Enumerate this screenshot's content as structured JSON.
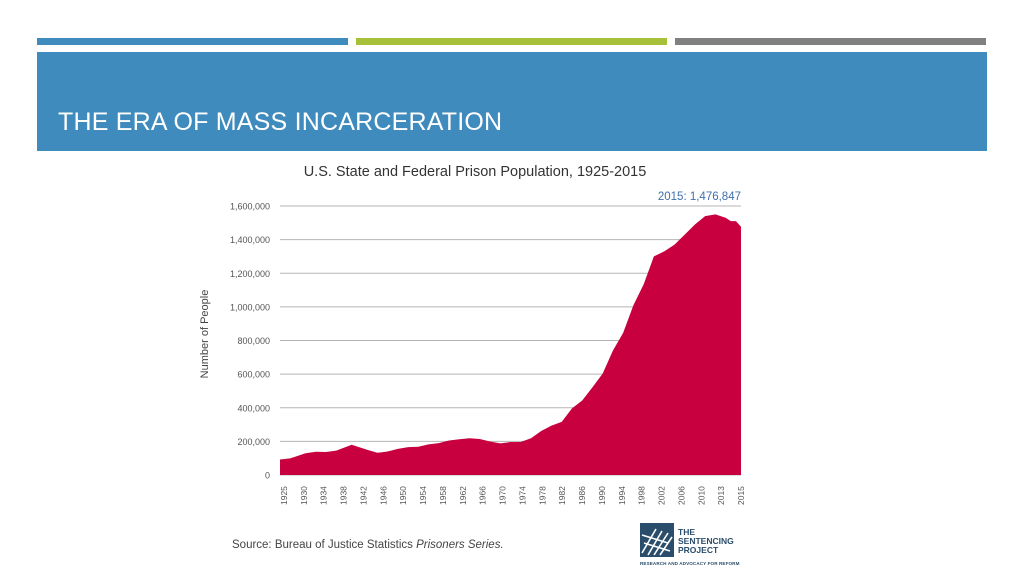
{
  "slide": {
    "title": "THE ERA OF MASS INCARCERATION",
    "accent_colors": [
      "#3f8bbd",
      "#a7c03a",
      "#808080"
    ],
    "source_prefix": "Source: Bureau of Justice Statistics ",
    "source_italic": "Prisoners Series."
  },
  "logo": {
    "line1": "THE",
    "line2": "SENTENCING",
    "line3": "PROJECT",
    "tagline": "RESEARCH AND ADVOCACY FOR REFORM",
    "icon": "sentencing-project-logo-icon"
  },
  "chart_data": {
    "type": "area",
    "title": "U.S. State and Federal Prison Population, 1925-2015",
    "xlabel": "",
    "ylabel": "Number of People",
    "ylim": [
      0,
      1600000
    ],
    "yticks": [
      0,
      200000,
      400000,
      600000,
      800000,
      1000000,
      1200000,
      1400000,
      1600000
    ],
    "ytick_labels": [
      "0",
      "200,000",
      "400,000",
      "600,000",
      "800,000",
      "1,000,000",
      "1,200,000",
      "1,400,000",
      "1,600,000"
    ],
    "xtick_labels": [
      "1925",
      "1930",
      "1934",
      "1938",
      "1942",
      "1946",
      "1950",
      "1954",
      "1958",
      "1962",
      "1966",
      "1970",
      "1974",
      "1978",
      "1982",
      "1986",
      "1990",
      "1994",
      "1998",
      "2002",
      "2006",
      "2010",
      "2013",
      "2015"
    ],
    "grid": true,
    "fill_color": "#c8003f",
    "annotation": "2015: 1,476,847",
    "series": [
      {
        "x": [
          1925,
          1927,
          1930,
          1932,
          1934,
          1936,
          1939,
          1942,
          1944,
          1946,
          1948,
          1950,
          1952,
          1954,
          1956,
          1958,
          1960,
          1962,
          1964,
          1966,
          1968,
          1970,
          1972,
          1974,
          1976,
          1978,
          1980,
          1982,
          1984,
          1986,
          1988,
          1990,
          1992,
          1994,
          1996,
          1998,
          2000,
          2002,
          2004,
          2006,
          2008,
          2010,
          2012,
          2013,
          2014,
          2015
        ],
        "values": [
          92000,
          99000,
          129000,
          138000,
          137000,
          145000,
          180000,
          150000,
          132000,
          140000,
          155000,
          166000,
          168000,
          182000,
          190000,
          205000,
          213000,
          219000,
          214000,
          199000,
          188000,
          196000,
          196000,
          218000,
          262000,
          294000,
          316000,
          396000,
          443000,
          522000,
          604000,
          740000,
          846000,
          1010000,
          1135000,
          1300000,
          1330000,
          1370000,
          1430000,
          1490000,
          1540000,
          1550000,
          1530000,
          1510000,
          1510000,
          1476847
        ]
      }
    ]
  }
}
